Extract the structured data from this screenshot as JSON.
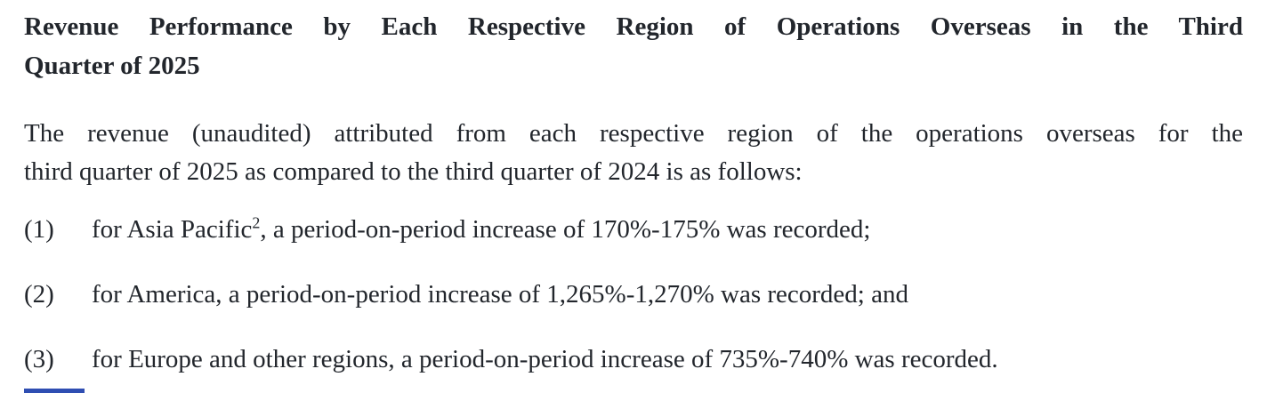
{
  "page": {
    "background_color": "#ffffff",
    "text_color": "#22262c"
  },
  "heading": {
    "line1": "Revenue Performance by Each Respective Region of Operations Overseas in the Third",
    "line2": "Quarter of 2025"
  },
  "intro": {
    "line1": "The revenue (unaudited) attributed from each respective region of the operations overseas for the",
    "line2": "third quarter of 2025 as compared to the third quarter of 2024 is as follows:"
  },
  "list": {
    "items": [
      {
        "marker": "(1)",
        "text": "for Asia Pacific",
        "footnote_ref": "2",
        "text_after": ", a period-on-period increase of 170%-175% was recorded;"
      },
      {
        "marker": "(2)",
        "text": "for America, a period-on-period increase of 1,265%-1,270% was recorded; and",
        "footnote_ref": "",
        "text_after": ""
      },
      {
        "marker": "(3)",
        "text": "for Europe and other regions, a period-on-period increase of 735%-740% was recorded.",
        "footnote_ref": "",
        "text_after": ""
      }
    ]
  },
  "decorations": {
    "bottom_cutoff_bar_color": "#2f4eb2"
  }
}
